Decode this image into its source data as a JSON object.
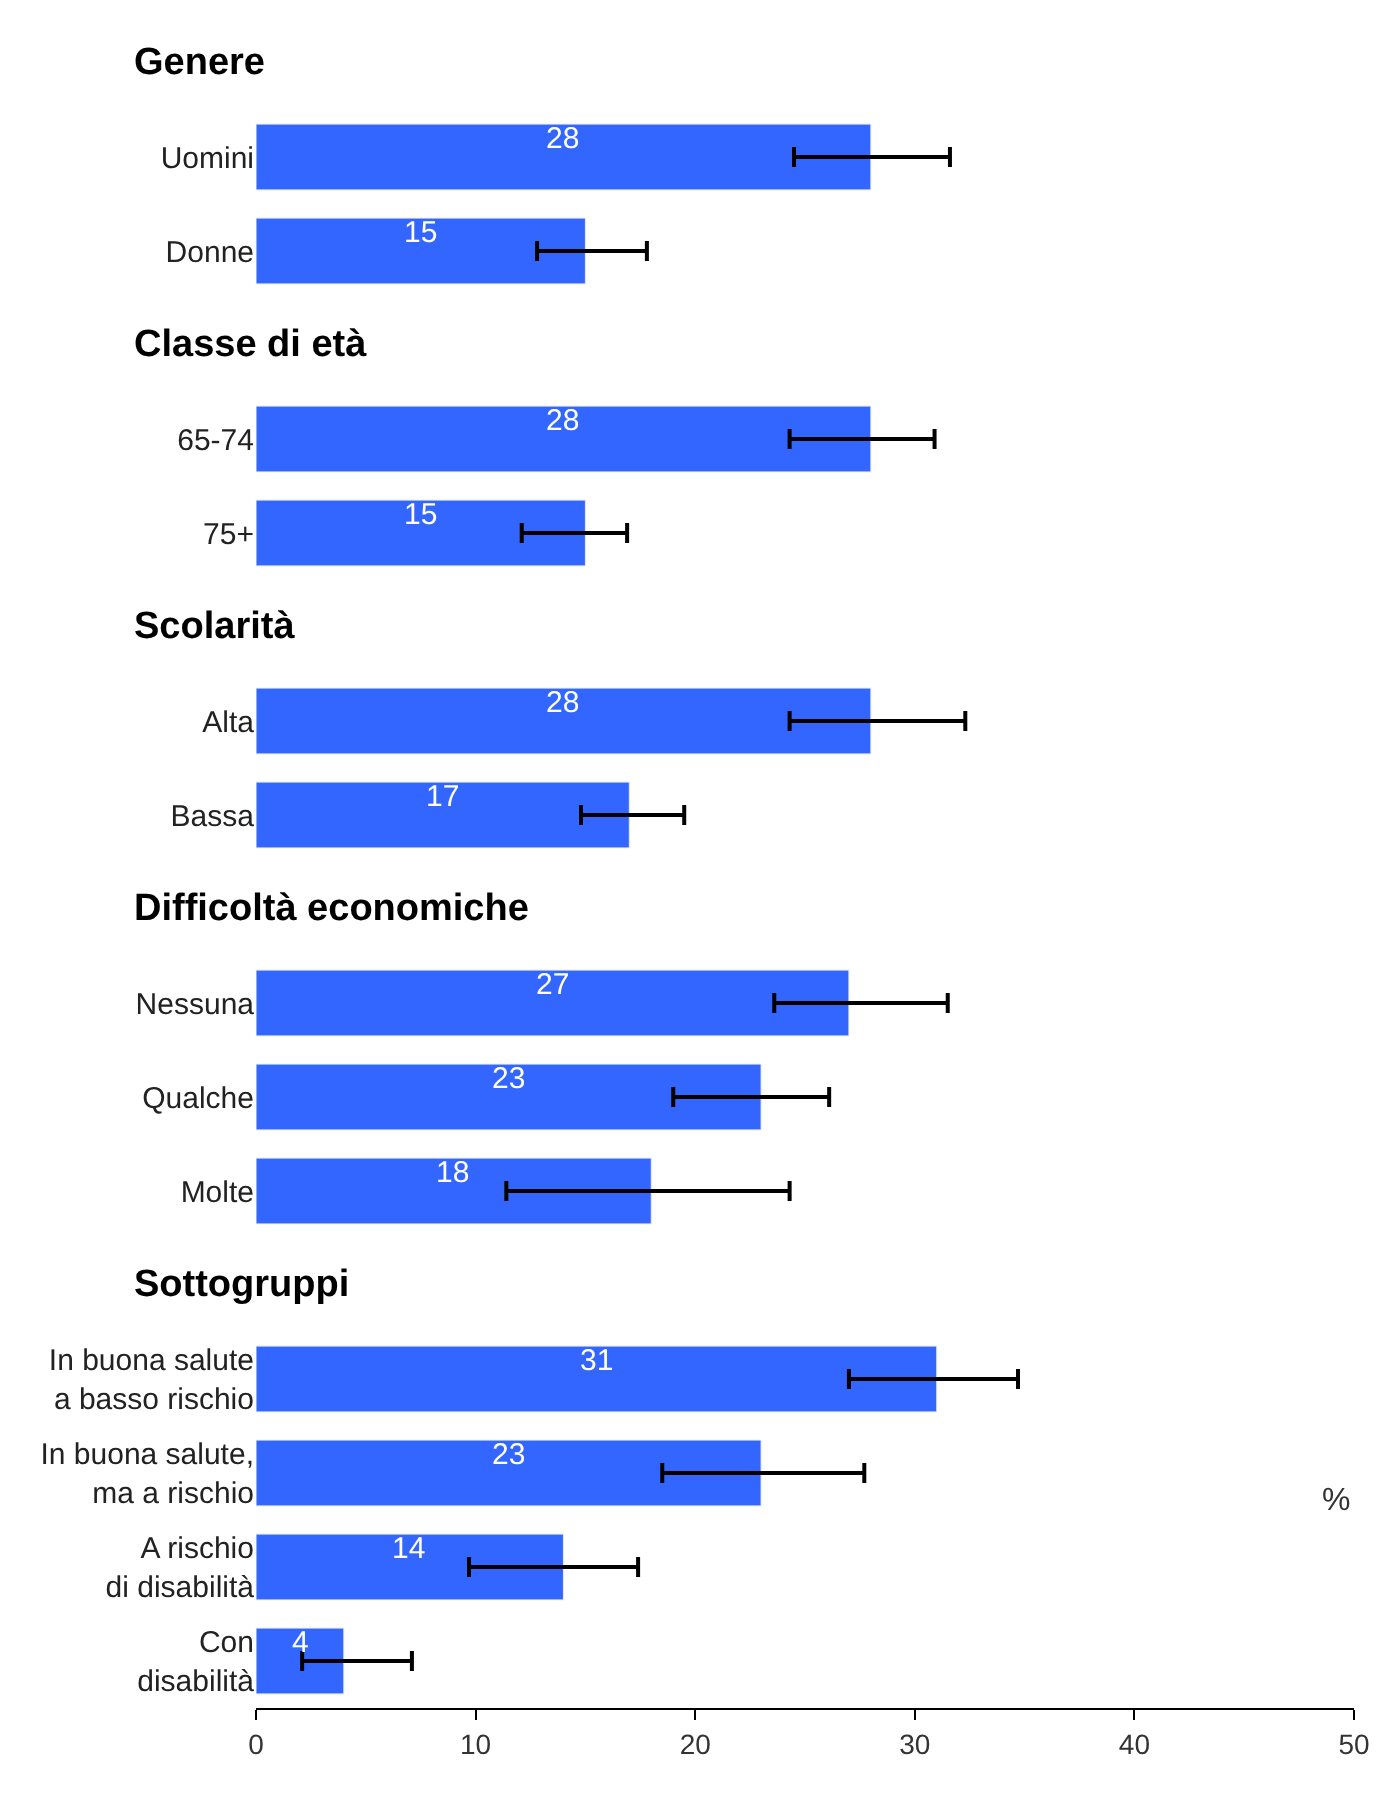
{
  "chart_data": {
    "type": "bar",
    "orientation": "horizontal",
    "xlabel": "%",
    "categories": [
      "Genere",
      "Uomini",
      "Donne",
      "Classe di età",
      "65-74",
      "75+",
      "Scolarità",
      "Alta",
      "Bassa",
      "Difficoltà economiche",
      "Nessuna",
      "Qualche",
      "Molte",
      "Sottogruppi",
      "In buona salute\na basso rischio",
      "In buona salute,\nma a rischio",
      "A rischio\ndi disabilità",
      "Con\ndisabilità"
    ],
    "values": [
      null,
      28,
      15,
      null,
      28,
      15,
      null,
      28,
      17,
      null,
      27,
      23,
      18,
      null,
      31,
      23,
      14,
      4
    ],
    "errors": [
      null,
      [
        24.5,
        31.6
      ],
      [
        12.8,
        17.8
      ],
      null,
      [
        24.3,
        30.9
      ],
      [
        12.1,
        16.9
      ],
      null,
      [
        24.3,
        32.3
      ],
      [
        14.8,
        19.5
      ],
      null,
      [
        23.6,
        31.5
      ],
      [
        19.0,
        26.1
      ],
      [
        11.4,
        24.3
      ],
      null,
      [
        27.0,
        34.7
      ],
      [
        18.5,
        27.7
      ],
      [
        9.7,
        17.4
      ],
      [
        2.1,
        7.1
      ]
    ],
    "color": "#3366ff",
    "data_labels": true,
    "xlim": [
      0,
      50
    ],
    "xticks": [
      0,
      10,
      20,
      30,
      40,
      50
    ]
  }
}
